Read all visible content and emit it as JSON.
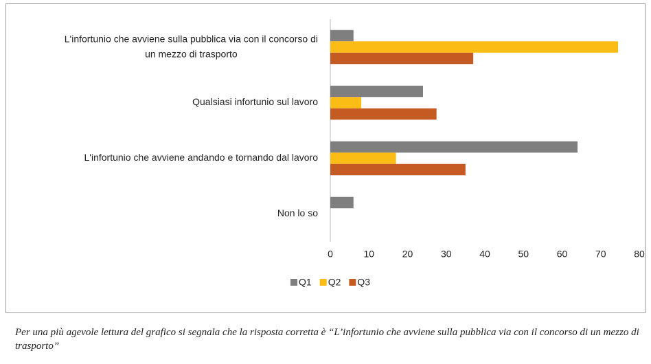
{
  "chart_data": {
    "type": "bar",
    "orientation": "horizontal",
    "categories": [
      "L'infortunio che avviene sulla pubblica via con il concorso di\nun mezzo di trasporto",
      "Qualsiasi infortunio sul lavoro",
      "L'infortunio che avviene andando e tornando dal lavoro",
      "Non lo so"
    ],
    "series": [
      {
        "name": "Q1",
        "color": "#7f7f7f",
        "values": [
          6,
          24,
          64,
          6
        ]
      },
      {
        "name": "Q2",
        "color": "#fbbc16",
        "values": [
          74.5,
          8,
          17,
          0
        ]
      },
      {
        "name": "Q3",
        "color": "#c55a22",
        "values": [
          37,
          27.5,
          35,
          0
        ]
      }
    ],
    "xlim": [
      0,
      80
    ],
    "xticks": [
      0,
      10,
      20,
      30,
      40,
      50,
      60,
      70,
      80
    ],
    "legend": "bottom",
    "note": "Per una più agevole lettura del grafico si segnala che la risposta corretta è “L’infortunio che avviene sulla pubblica via con il concorso di un mezzo di trasporto”"
  }
}
